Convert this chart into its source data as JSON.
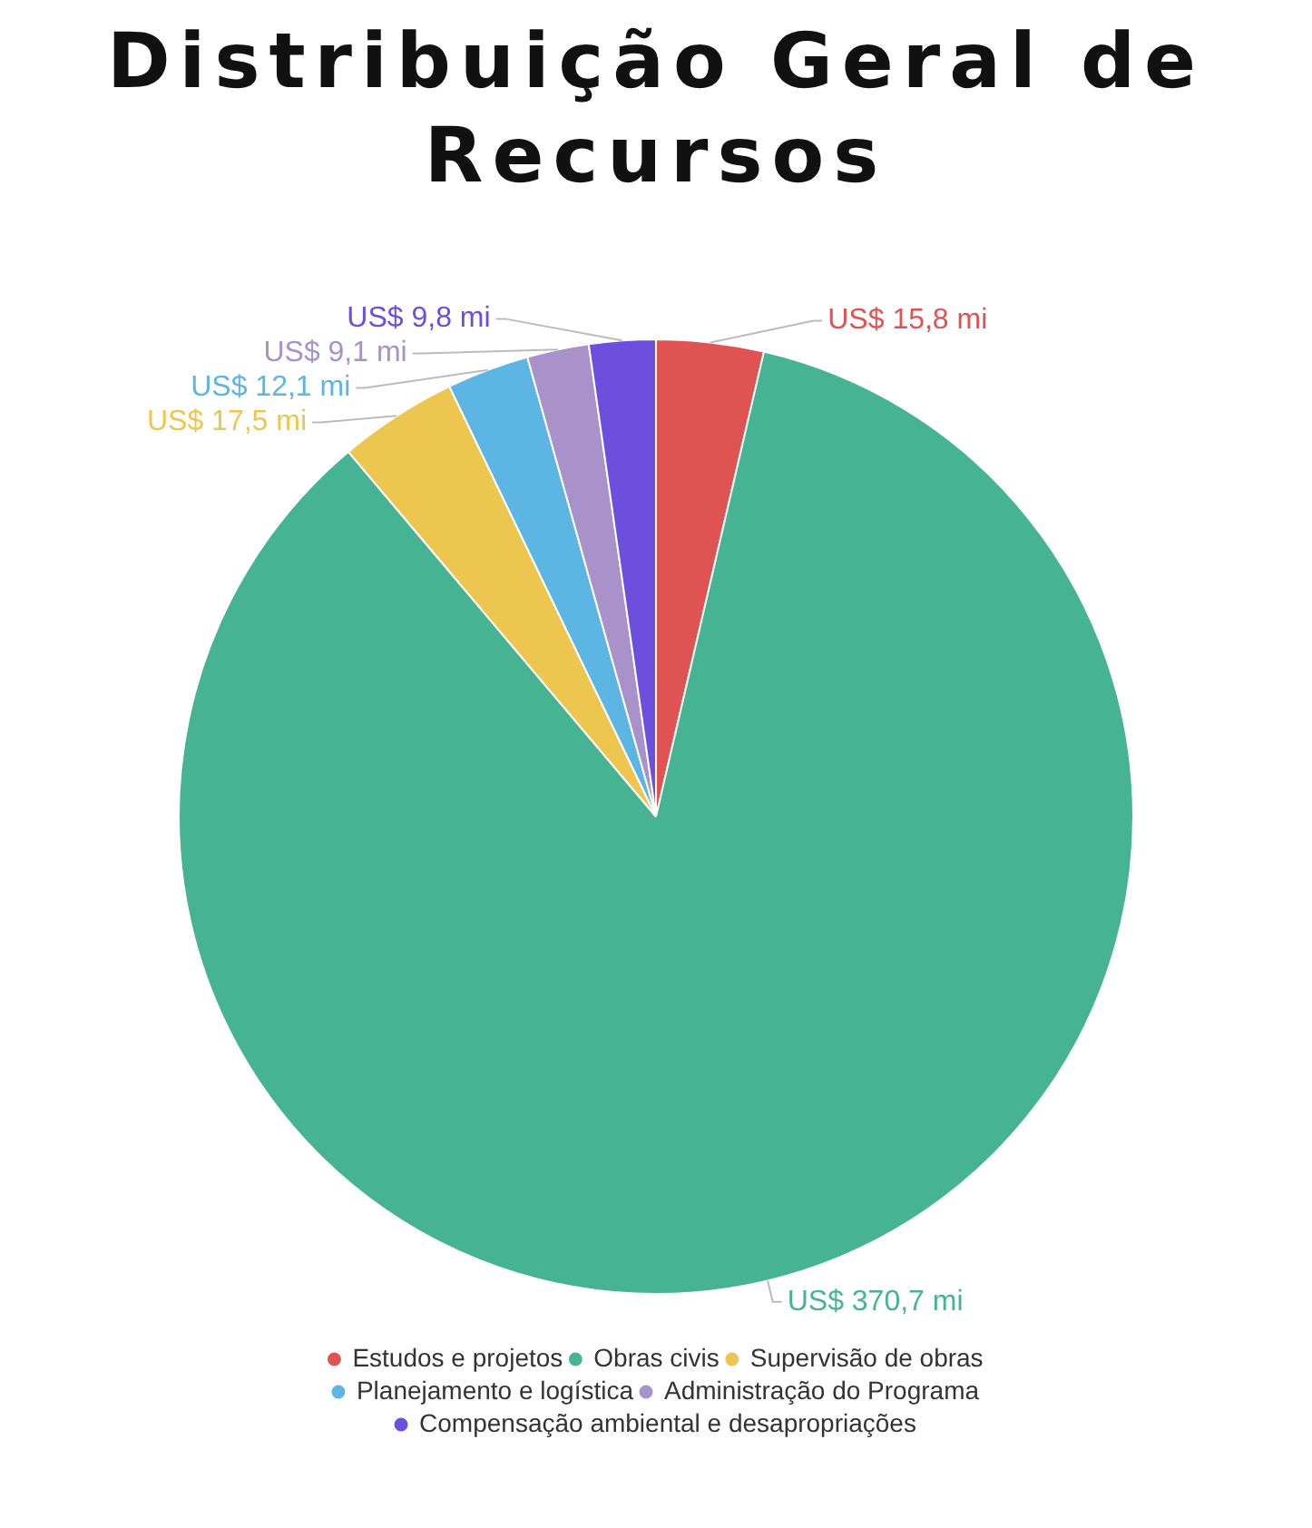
{
  "chart_data": {
    "type": "pie",
    "title": "Distribuição Geral de Recursos",
    "categories": [
      "Estudos e projetos",
      "Obras civis",
      "Supervisão de obras",
      "Planejamento e logística",
      "Administração do Programa",
      "Compensação ambiental e desapropriações"
    ],
    "values": [
      15.8,
      370.7,
      17.5,
      12.1,
      9.1,
      9.8
    ],
    "value_labels": [
      "US$ 15,8 mi",
      "US$ 370,7 mi",
      "US$ 17,5 mi",
      "US$ 12,1 mi",
      "US$ 9,1 mi",
      "US$ 9,8 mi"
    ],
    "colors": [
      "#e05353",
      "#46b392",
      "#ecc64f",
      "#5db5e4",
      "#a991c9",
      "#6c4fdd"
    ],
    "legend": "bottom"
  }
}
